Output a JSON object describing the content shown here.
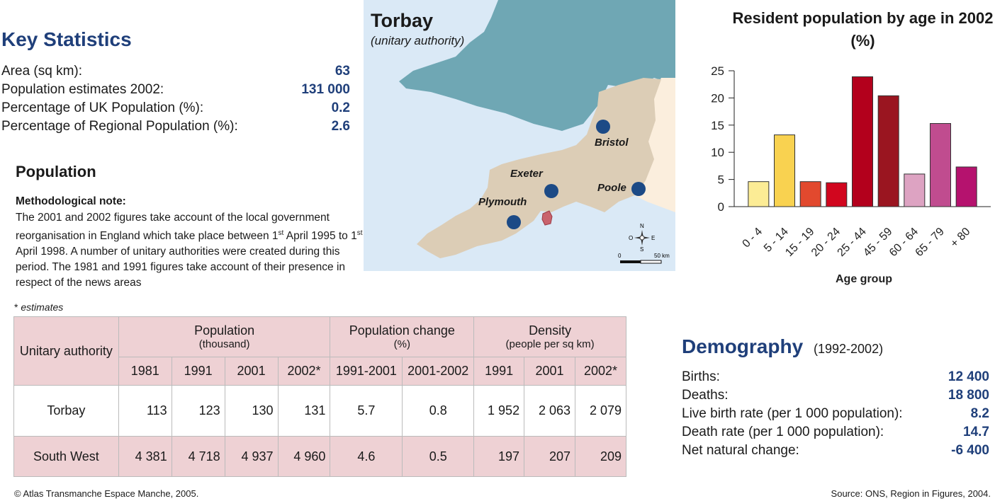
{
  "key_statistics": {
    "title": "Key Statistics",
    "rows": [
      {
        "label": "Area (sq km):",
        "value": "63"
      },
      {
        "label": "Population estimates 2002:",
        "value": "131 000"
      },
      {
        "label": "Percentage of UK Population (%):",
        "value": "0.2"
      },
      {
        "label": "Percentage of Regional Population (%):",
        "value": "2.6"
      }
    ]
  },
  "population": {
    "title": "Population",
    "note_label": "Methodological note:",
    "note_part1": "The 2001 and 2002 figures take account of the local government reorganisation in England which take place between 1",
    "note_sup1": "st",
    "note_part2": " April 1995 to 1",
    "note_sup2": "st",
    "note_part3": " April 1998. A number of unitary authorities were created during this period. The 1981 and 1991 figures take account of their presence in respect of the news areas",
    "estimates_star": "* ",
    "estimates_word": "estimates"
  },
  "table": {
    "header_authority": "Unitary authority",
    "group_population": "Population",
    "group_population_unit": "(thousand)",
    "group_change": "Population change",
    "group_change_unit": "(%)",
    "group_density": "Density",
    "group_density_unit": "(people per sq km)",
    "sub_headers": [
      "1981",
      "1991",
      "2001",
      "2002*",
      "1991-2001",
      "2001-2002",
      "1991",
      "2001",
      "2002*"
    ],
    "rows": [
      {
        "name": "Torbay",
        "values": [
          "113",
          "123",
          "130",
          "131",
          "5.7",
          "0.8",
          "1 952",
          "2 063",
          "2 079"
        ]
      },
      {
        "name": "South West",
        "values": [
          "4 381",
          "4 718",
          "4 937",
          "4 960",
          "4.6",
          "0.5",
          "197",
          "207",
          "209"
        ]
      }
    ]
  },
  "map": {
    "title": "Torbay",
    "subtitle": "(unitary authority)",
    "cities": [
      "Bristol",
      "Exeter",
      "Poole",
      "Plymouth"
    ],
    "compass": {
      "n": "N",
      "s": "S",
      "e": "E",
      "o": "O"
    },
    "scale_start": "0",
    "scale_end": "50 km",
    "colors": {
      "sea": "#dae9f6",
      "wales": "#6fa7b4",
      "region": "#dccdb6",
      "neighbor": "#fbeedd",
      "torbay": "#c9636d",
      "city": "#1c4a86"
    }
  },
  "chart_data": {
    "type": "bar",
    "title": "Resident population by age in 2002 (%)",
    "xlabel": "Age group",
    "ylabel": "",
    "ylim": [
      0,
      25
    ],
    "yticks": [
      "0",
      "5",
      "10",
      "15",
      "20",
      "25"
    ],
    "categories": [
      "0 - 4",
      "5 - 14",
      "15 - 19",
      "20 - 24",
      "25 - 44",
      "45 - 59",
      "60 - 64",
      "65 - 79",
      "+ 80"
    ],
    "values": [
      4.6,
      13.2,
      4.6,
      4.4,
      23.9,
      20.4,
      6.0,
      15.3,
      7.3
    ],
    "colors": [
      "#fcec95",
      "#f9d250",
      "#e2492e",
      "#d1061e",
      "#b3001c",
      "#9a1520",
      "#dda3c2",
      "#c04c8f",
      "#b5126e"
    ]
  },
  "demography": {
    "title": "Demography",
    "period": "(1992-2002)",
    "rows": [
      {
        "label": "Births:",
        "value": "12 400"
      },
      {
        "label": "Deaths:",
        "value": "18 800"
      },
      {
        "label": "Live birth rate (per 1 000 population):",
        "value": "8.2"
      },
      {
        "label": "Death rate (per 1 000 population):",
        "value": "14.7"
      },
      {
        "label": "Net natural change:",
        "value": "-6 400"
      }
    ]
  },
  "footer": {
    "copyright": "© Atlas Transmanche Espace Manche, 2005.",
    "source": "Source: ONS, Region in Figures, 2004."
  }
}
